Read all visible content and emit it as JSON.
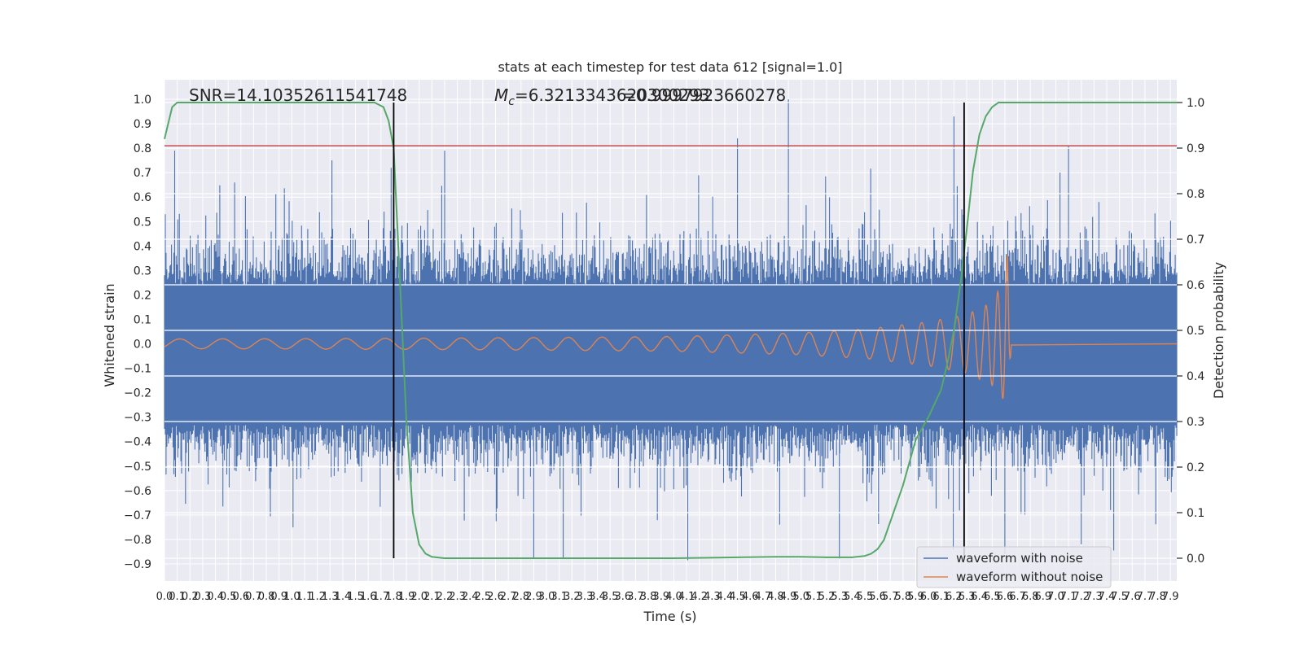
{
  "chart_data": {
    "type": "line",
    "title": "stats at each timestep for test data 612 [signal=1.0]",
    "xlabel": "Time (s)",
    "ylabel": "Whitened strain",
    "y2label": "Detection probability",
    "xlim": [
      0.0,
      7.95
    ],
    "ylim": [
      -0.97,
      1.08
    ],
    "y2lim": [
      -0.05,
      1.05
    ],
    "x_ticks": [
      "0.0",
      "0.1",
      "0.2",
      "0.3",
      "0.4",
      "0.5",
      "0.6",
      "0.7",
      "0.8",
      "0.9",
      "1.0",
      "1.1",
      "1.2",
      "1.3",
      "1.4",
      "1.5",
      "1.6",
      "1.7",
      "1.8",
      "1.9",
      "2.0",
      "2.1",
      "2.2",
      "2.3",
      "2.4",
      "2.5",
      "2.6",
      "2.7",
      "2.8",
      "2.9",
      "3.0",
      "3.1",
      "3.2",
      "3.3",
      "3.4",
      "3.5",
      "3.6",
      "3.7",
      "3.8",
      "3.9",
      "4.0",
      "4.1",
      "4.2",
      "4.3",
      "4.4",
      "4.5",
      "4.6",
      "4.7",
      "4.8",
      "4.9",
      "5.0",
      "5.1",
      "5.2",
      "5.3",
      "5.4",
      "5.5",
      "5.6",
      "5.7",
      "5.8",
      "5.9",
      "6.0",
      "6.1",
      "6.2",
      "6.3",
      "6.4",
      "6.5",
      "6.6",
      "6.7",
      "6.8",
      "6.9",
      "7.0",
      "7.1",
      "7.2",
      "7.3",
      "7.4",
      "7.5",
      "7.6",
      "7.7",
      "7.8",
      "7.9"
    ],
    "y_ticks": [
      "−0.9",
      "−0.8",
      "−0.7",
      "−0.6",
      "−0.5",
      "−0.4",
      "−0.3",
      "−0.2",
      "−0.1",
      "0.0",
      "0.1",
      "0.2",
      "0.3",
      "0.4",
      "0.5",
      "0.6",
      "0.7",
      "0.8",
      "0.9",
      "1.0"
    ],
    "y2_ticks": [
      "0.0",
      "0.1",
      "0.2",
      "0.3",
      "0.4",
      "0.5",
      "0.6",
      "0.7",
      "0.8",
      "0.9",
      "1.0"
    ],
    "annotations": {
      "snr": "SNR=14.10352611541748",
      "mc_symbol": "M",
      "mc_sub": "c",
      "mc_value": "=6.3213343620300293",
      "overlap_value": "=0.9997923660278"
    },
    "threshold": {
      "y": 0.81,
      "color": "#c44e52"
    },
    "vertical_markers": [
      1.8,
      6.28
    ],
    "detection_probability": {
      "name": "detection probability",
      "color": "#55a868",
      "x": [
        0.0,
        0.06,
        0.1,
        0.2,
        0.5,
        1.0,
        1.5,
        1.65,
        1.72,
        1.76,
        1.8,
        1.85,
        1.9,
        1.95,
        2.0,
        2.05,
        2.1,
        2.2,
        2.5,
        3.0,
        3.5,
        4.0,
        4.5,
        4.8,
        5.0,
        5.2,
        5.4,
        5.5,
        5.55,
        5.6,
        5.65,
        5.7,
        5.8,
        5.9,
        6.0,
        6.05,
        6.1,
        6.15,
        6.2,
        6.25,
        6.3,
        6.35,
        6.4,
        6.45,
        6.5,
        6.55,
        6.6,
        7.0,
        7.5,
        7.95
      ],
      "y": [
        0.92,
        0.99,
        1.0,
        1.0,
        1.0,
        1.0,
        1.0,
        1.0,
        0.99,
        0.96,
        0.9,
        0.6,
        0.3,
        0.1,
        0.03,
        0.01,
        0.003,
        0.0,
        0.0,
        0.0,
        0.0,
        0.0,
        0.002,
        0.003,
        0.003,
        0.002,
        0.002,
        0.005,
        0.01,
        0.02,
        0.04,
        0.08,
        0.16,
        0.26,
        0.31,
        0.34,
        0.37,
        0.43,
        0.5,
        0.6,
        0.72,
        0.85,
        0.93,
        0.97,
        0.99,
        1.0,
        1.0,
        1.0,
        1.0,
        1.0
      ]
    },
    "series": [
      {
        "name": "waveform with noise",
        "color": "#4c72b0",
        "description": "dense whitened strain noise, amplitude mostly within ±0.4 with spikes to +1.0 and −0.88 across 0.0–7.95 s",
        "amplitude_band": [
          -0.33,
          0.24
        ],
        "peaks": [
          {
            "x": 0.08,
            "y": 0.79
          },
          {
            "x": 1.78,
            "y": 0.72
          },
          {
            "x": 2.2,
            "y": 0.79
          },
          {
            "x": 4.5,
            "y": 0.84
          },
          {
            "x": 4.9,
            "y": 1.0
          },
          {
            "x": 6.2,
            "y": 0.93
          },
          {
            "x": 7.1,
            "y": 0.81
          },
          {
            "x": 2.9,
            "y": -0.88
          },
          {
            "x": 5.3,
            "y": -0.88
          },
          {
            "x": 6.6,
            "y": -0.86
          },
          {
            "x": 7.2,
            "y": -0.82
          }
        ]
      },
      {
        "name": "waveform without noise",
        "color": "#dd8452",
        "description": "chirp signal growing from ±0.02 to a peak of about +0.37 / −0.28 near 6.6 s, then ringing down to ~0",
        "envelope": {
          "x": [
            0.0,
            1.0,
            2.0,
            3.0,
            4.0,
            5.0,
            5.5,
            6.0,
            6.3,
            6.5,
            6.58,
            6.62,
            6.65
          ],
          "upper": [
            0.02,
            0.021,
            0.023,
            0.026,
            0.03,
            0.045,
            0.06,
            0.09,
            0.12,
            0.17,
            0.25,
            0.37,
            0.005
          ],
          "lower": [
            -0.02,
            -0.021,
            -0.023,
            -0.026,
            -0.03,
            -0.045,
            -0.06,
            -0.09,
            -0.12,
            -0.17,
            -0.22,
            -0.28,
            -0.005
          ]
        }
      }
    ],
    "legend": {
      "placement": "lower-right"
    }
  }
}
